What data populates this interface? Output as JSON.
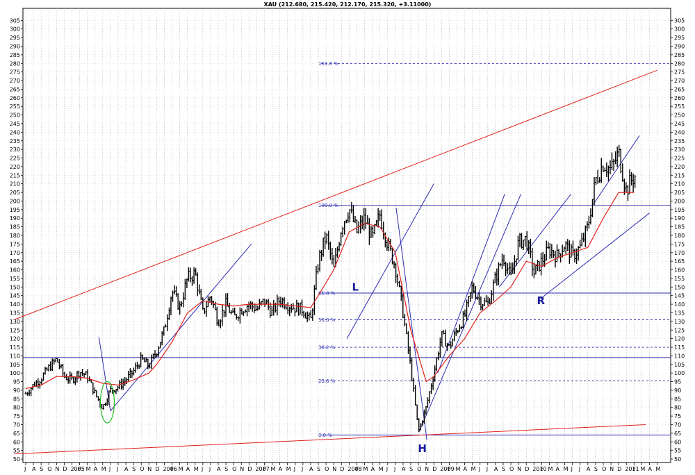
{
  "chart_data": {
    "type": "bar",
    "title": "XAU (212.680, 215.420, 212.170, 215.320, +3.11000)",
    "ylim": [
      48,
      312
    ],
    "y_ticks": [
      50,
      55,
      60,
      65,
      70,
      75,
      80,
      85,
      90,
      95,
      100,
      105,
      110,
      115,
      120,
      125,
      130,
      135,
      140,
      145,
      150,
      155,
      160,
      165,
      170,
      175,
      180,
      185,
      190,
      195,
      200,
      205,
      210,
      215,
      220,
      225,
      230,
      235,
      240,
      245,
      250,
      255,
      260,
      265,
      270,
      275,
      280,
      285,
      290,
      295,
      300,
      305
    ],
    "x_tick_labels": [
      {
        "pos": 0,
        "label": "J"
      },
      {
        "pos": 1,
        "label": "A"
      },
      {
        "pos": 2,
        "label": "S"
      },
      {
        "pos": 3,
        "label": "O"
      },
      {
        "pos": 4,
        "label": "N"
      },
      {
        "pos": 5,
        "label": "D"
      },
      {
        "pos": 6,
        "label": "2005"
      },
      {
        "pos": 7,
        "label": "F"
      },
      {
        "pos": 8,
        "label": "M"
      },
      {
        "pos": 9,
        "label": "A"
      },
      {
        "pos": 10,
        "label": "M"
      },
      {
        "pos": 11,
        "label": "J"
      },
      {
        "pos": 12,
        "label": "J"
      },
      {
        "pos": 13,
        "label": "A"
      },
      {
        "pos": 14,
        "label": "S"
      },
      {
        "pos": 15,
        "label": "O"
      },
      {
        "pos": 16,
        "label": "N"
      },
      {
        "pos": 17,
        "label": "D"
      },
      {
        "pos": 18,
        "label": "2006"
      },
      {
        "pos": 19,
        "label": "F"
      },
      {
        "pos": 20,
        "label": "M"
      },
      {
        "pos": 21,
        "label": "A"
      },
      {
        "pos": 22,
        "label": "M"
      },
      {
        "pos": 23,
        "label": "J"
      },
      {
        "pos": 24,
        "label": "J"
      },
      {
        "pos": 25,
        "label": "A"
      },
      {
        "pos": 26,
        "label": "S"
      },
      {
        "pos": 27,
        "label": "O"
      },
      {
        "pos": 28,
        "label": "N"
      },
      {
        "pos": 29,
        "label": "D"
      },
      {
        "pos": 30,
        "label": "2007"
      },
      {
        "pos": 31,
        "label": "F"
      },
      {
        "pos": 32,
        "label": "M"
      },
      {
        "pos": 33,
        "label": "A"
      },
      {
        "pos": 34,
        "label": "M"
      },
      {
        "pos": 35,
        "label": "J"
      },
      {
        "pos": 36,
        "label": "J"
      },
      {
        "pos": 37,
        "label": "A"
      },
      {
        "pos": 38,
        "label": "S"
      },
      {
        "pos": 39,
        "label": "O"
      },
      {
        "pos": 40,
        "label": "N"
      },
      {
        "pos": 41,
        "label": "D"
      },
      {
        "pos": 42,
        "label": "2008"
      },
      {
        "pos": 43,
        "label": "F"
      },
      {
        "pos": 44,
        "label": "M"
      },
      {
        "pos": 45,
        "label": "A"
      },
      {
        "pos": 46,
        "label": "M"
      },
      {
        "pos": 47,
        "label": "J"
      },
      {
        "pos": 48,
        "label": "J"
      },
      {
        "pos": 49,
        "label": "A"
      },
      {
        "pos": 50,
        "label": "S"
      },
      {
        "pos": 51,
        "label": "O"
      },
      {
        "pos": 52,
        "label": "N"
      },
      {
        "pos": 53,
        "label": "D"
      },
      {
        "pos": 54,
        "label": "2009"
      },
      {
        "pos": 55,
        "label": "F"
      },
      {
        "pos": 56,
        "label": "M"
      },
      {
        "pos": 57,
        "label": "A"
      },
      {
        "pos": 58,
        "label": "M"
      },
      {
        "pos": 59,
        "label": "J"
      },
      {
        "pos": 60,
        "label": "J"
      },
      {
        "pos": 61,
        "label": "A"
      },
      {
        "pos": 62,
        "label": "S"
      },
      {
        "pos": 63,
        "label": "O"
      },
      {
        "pos": 64,
        "label": "N"
      },
      {
        "pos": 65,
        "label": "D"
      },
      {
        "pos": 66,
        "label": "2010"
      },
      {
        "pos": 67,
        "label": "F"
      },
      {
        "pos": 68,
        "label": "M"
      },
      {
        "pos": 69,
        "label": "A"
      },
      {
        "pos": 70,
        "label": "M"
      },
      {
        "pos": 71,
        "label": "J"
      },
      {
        "pos": 72,
        "label": "J"
      },
      {
        "pos": 73,
        "label": "A"
      },
      {
        "pos": 74,
        "label": "S"
      },
      {
        "pos": 75,
        "label": "O"
      },
      {
        "pos": 76,
        "label": "N"
      },
      {
        "pos": 77,
        "label": "D"
      },
      {
        "pos": 78,
        "label": "2011"
      },
      {
        "pos": 79,
        "label": "F"
      },
      {
        "pos": 80,
        "label": "M"
      },
      {
        "pos": 81,
        "label": "A"
      },
      {
        "pos": 82,
        "label": "M"
      }
    ],
    "price_path": [
      [
        0,
        88
      ],
      [
        1,
        93
      ],
      [
        2,
        97
      ],
      [
        3,
        103
      ],
      [
        4,
        108
      ],
      [
        5,
        98
      ],
      [
        6,
        96
      ],
      [
        7,
        101
      ],
      [
        8,
        98
      ],
      [
        9,
        88
      ],
      [
        10,
        80
      ],
      [
        11,
        90
      ],
      [
        12,
        92
      ],
      [
        13,
        96
      ],
      [
        14,
        101
      ],
      [
        15,
        108
      ],
      [
        16,
        104
      ],
      [
        17,
        113
      ],
      [
        18,
        125
      ],
      [
        19,
        148
      ],
      [
        20,
        138
      ],
      [
        21,
        155
      ],
      [
        22,
        158
      ],
      [
        23,
        135
      ],
      [
        24,
        145
      ],
      [
        25,
        130
      ],
      [
        26,
        140
      ],
      [
        27,
        132
      ],
      [
        28,
        137
      ],
      [
        29,
        140
      ],
      [
        30,
        137
      ],
      [
        31,
        142
      ],
      [
        32,
        135
      ],
      [
        33,
        143
      ],
      [
        34,
        140
      ],
      [
        35,
        138
      ],
      [
        36,
        137
      ],
      [
        37,
        130
      ],
      [
        38,
        165
      ],
      [
        39,
        180
      ],
      [
        40,
        160
      ],
      [
        41,
        185
      ],
      [
        42,
        196
      ],
      [
        43,
        182
      ],
      [
        44,
        190
      ],
      [
        45,
        178
      ],
      [
        46,
        192
      ],
      [
        47,
        175
      ],
      [
        48,
        162
      ],
      [
        49,
        135
      ],
      [
        50,
        103
      ],
      [
        51,
        66
      ],
      [
        52,
        80
      ],
      [
        53,
        100
      ],
      [
        54,
        122
      ],
      [
        55,
        115
      ],
      [
        56,
        125
      ],
      [
        57,
        133
      ],
      [
        58,
        150
      ],
      [
        59,
        142
      ],
      [
        60,
        140
      ],
      [
        61,
        155
      ],
      [
        62,
        168
      ],
      [
        63,
        155
      ],
      [
        64,
        176
      ],
      [
        65,
        178
      ],
      [
        66,
        158
      ],
      [
        67,
        165
      ],
      [
        68,
        172
      ],
      [
        69,
        168
      ],
      [
        70,
        175
      ],
      [
        71,
        168
      ],
      [
        72,
        173
      ],
      [
        73,
        185
      ],
      [
        74,
        212
      ],
      [
        75,
        222
      ],
      [
        76,
        218
      ],
      [
        77,
        228
      ],
      [
        78,
        206
      ],
      [
        78.6,
        212
      ],
      [
        79.2,
        215
      ]
    ],
    "moving_average": [
      [
        0,
        91
      ],
      [
        2,
        93
      ],
      [
        4,
        98
      ],
      [
        6,
        98
      ],
      [
        8,
        97
      ],
      [
        10,
        94
      ],
      [
        12,
        93
      ],
      [
        14,
        96
      ],
      [
        16,
        100
      ],
      [
        17,
        105
      ],
      [
        19,
        118
      ],
      [
        21,
        135
      ],
      [
        23,
        142
      ],
      [
        25,
        140
      ],
      [
        27,
        139
      ],
      [
        29,
        140
      ],
      [
        31,
        140
      ],
      [
        33,
        140
      ],
      [
        35,
        139
      ],
      [
        37,
        138
      ],
      [
        38,
        145
      ],
      [
        40,
        160
      ],
      [
        42,
        182
      ],
      [
        44,
        187
      ],
      [
        46,
        185
      ],
      [
        48,
        170
      ],
      [
        50,
        125
      ],
      [
        52,
        95
      ],
      [
        53,
        98
      ],
      [
        55,
        110
      ],
      [
        57,
        120
      ],
      [
        59,
        135
      ],
      [
        61,
        142
      ],
      [
        63,
        150
      ],
      [
        65,
        165
      ],
      [
        67,
        162
      ],
      [
        69,
        167
      ],
      [
        71,
        170
      ],
      [
        73,
        173
      ],
      [
        75,
        190
      ],
      [
        77,
        205
      ],
      [
        79,
        205
      ]
    ],
    "fibonacci_levels": [
      {
        "label": "0.0 %",
        "value": 64,
        "dashed": false
      },
      {
        "label": "23.6 %",
        "value": 95.5,
        "dashed": true
      },
      {
        "label": "38.2 %",
        "value": 115,
        "dashed": true
      },
      {
        "label": "50.0 %",
        "value": 131,
        "dashed": true
      },
      {
        "label": "61.8 %",
        "value": 146.5,
        "dashed": false
      },
      {
        "label": "100.0 %",
        "value": 197.5,
        "dashed": false
      },
      {
        "label": "161.8 %",
        "value": 280,
        "dashed": true
      }
    ],
    "horizontal_lines": [
      {
        "value": 109,
        "color": "#2b2bb0"
      }
    ],
    "trendlines_red": [
      {
        "from": [
          -1.5,
          131
        ],
        "to": [
          82,
          276
        ]
      },
      {
        "from": [
          -1.5,
          53
        ],
        "to": [
          80.5,
          70
        ]
      }
    ],
    "trendlines_blue": [
      {
        "from": [
          9.5,
          121
        ],
        "to": [
          11,
          78
        ]
      },
      {
        "from": [
          11,
          78
        ],
        "to": [
          29.3,
          175
        ]
      },
      {
        "from": [
          41.7,
          120
        ],
        "to": [
          53,
          210
        ]
      },
      {
        "from": [
          48.1,
          196
        ],
        "to": [
          52.1,
          61
        ]
      },
      {
        "from": [
          51.1,
          66
        ],
        "to": [
          64.3,
          204
        ]
      },
      {
        "from": [
          53.5,
          100
        ],
        "to": [
          62.2,
          204
        ]
      },
      {
        "from": [
          61.5,
          150
        ],
        "to": [
          70.8,
          204
        ]
      },
      {
        "from": [
          66.8,
          143
        ],
        "to": [
          81,
          193
        ]
      },
      {
        "from": [
          73.7,
          198
        ],
        "to": [
          79.7,
          238
        ]
      }
    ],
    "pattern_labels": [
      {
        "text": "L",
        "x": 42.8,
        "y": 148
      },
      {
        "text": "H",
        "x": 51.5,
        "y": 54
      },
      {
        "text": "R",
        "x": 66.9,
        "y": 140
      }
    ],
    "highlight_ellipse": {
      "cx": 10.6,
      "cy": 83,
      "rx": 0.9,
      "ry": 12
    }
  }
}
